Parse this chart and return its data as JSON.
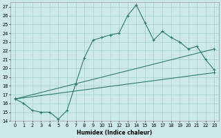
{
  "xlabel": "Humidex (Indice chaleur)",
  "background_color": "#cce8e8",
  "grid_color": "#aad4d4",
  "line_color": "#2d7a6e",
  "xlim": [
    -0.5,
    23.5
  ],
  "ylim": [
    14,
    27.5
  ],
  "xticks": [
    0,
    1,
    2,
    3,
    4,
    5,
    6,
    7,
    8,
    9,
    10,
    11,
    12,
    13,
    14,
    15,
    16,
    17,
    18,
    19,
    20,
    21,
    22,
    23
  ],
  "yticks": [
    14,
    15,
    16,
    17,
    18,
    19,
    20,
    21,
    22,
    23,
    24,
    25,
    26,
    27
  ],
  "line1_x": [
    0,
    1,
    2,
    3,
    4,
    5,
    6,
    7,
    8,
    9,
    10,
    11,
    12,
    13,
    14,
    15,
    16,
    17,
    18,
    19,
    20,
    21,
    22,
    23
  ],
  "line1_y": [
    16.5,
    16.0,
    15.2,
    15.0,
    15.0,
    14.2,
    15.2,
    18.2,
    21.2,
    23.2,
    23.5,
    23.8,
    24.0,
    26.0,
    27.2,
    25.2,
    23.2,
    24.2,
    23.5,
    23.0,
    22.2,
    22.5,
    21.0,
    19.8
  ],
  "line2_x": [
    0,
    23
  ],
  "line2_y": [
    16.5,
    22.2
  ],
  "line3_x": [
    0,
    23
  ],
  "line3_y": [
    16.5,
    19.5
  ],
  "xlabel_fontsize": 5.5,
  "tick_fontsize": 4.8
}
